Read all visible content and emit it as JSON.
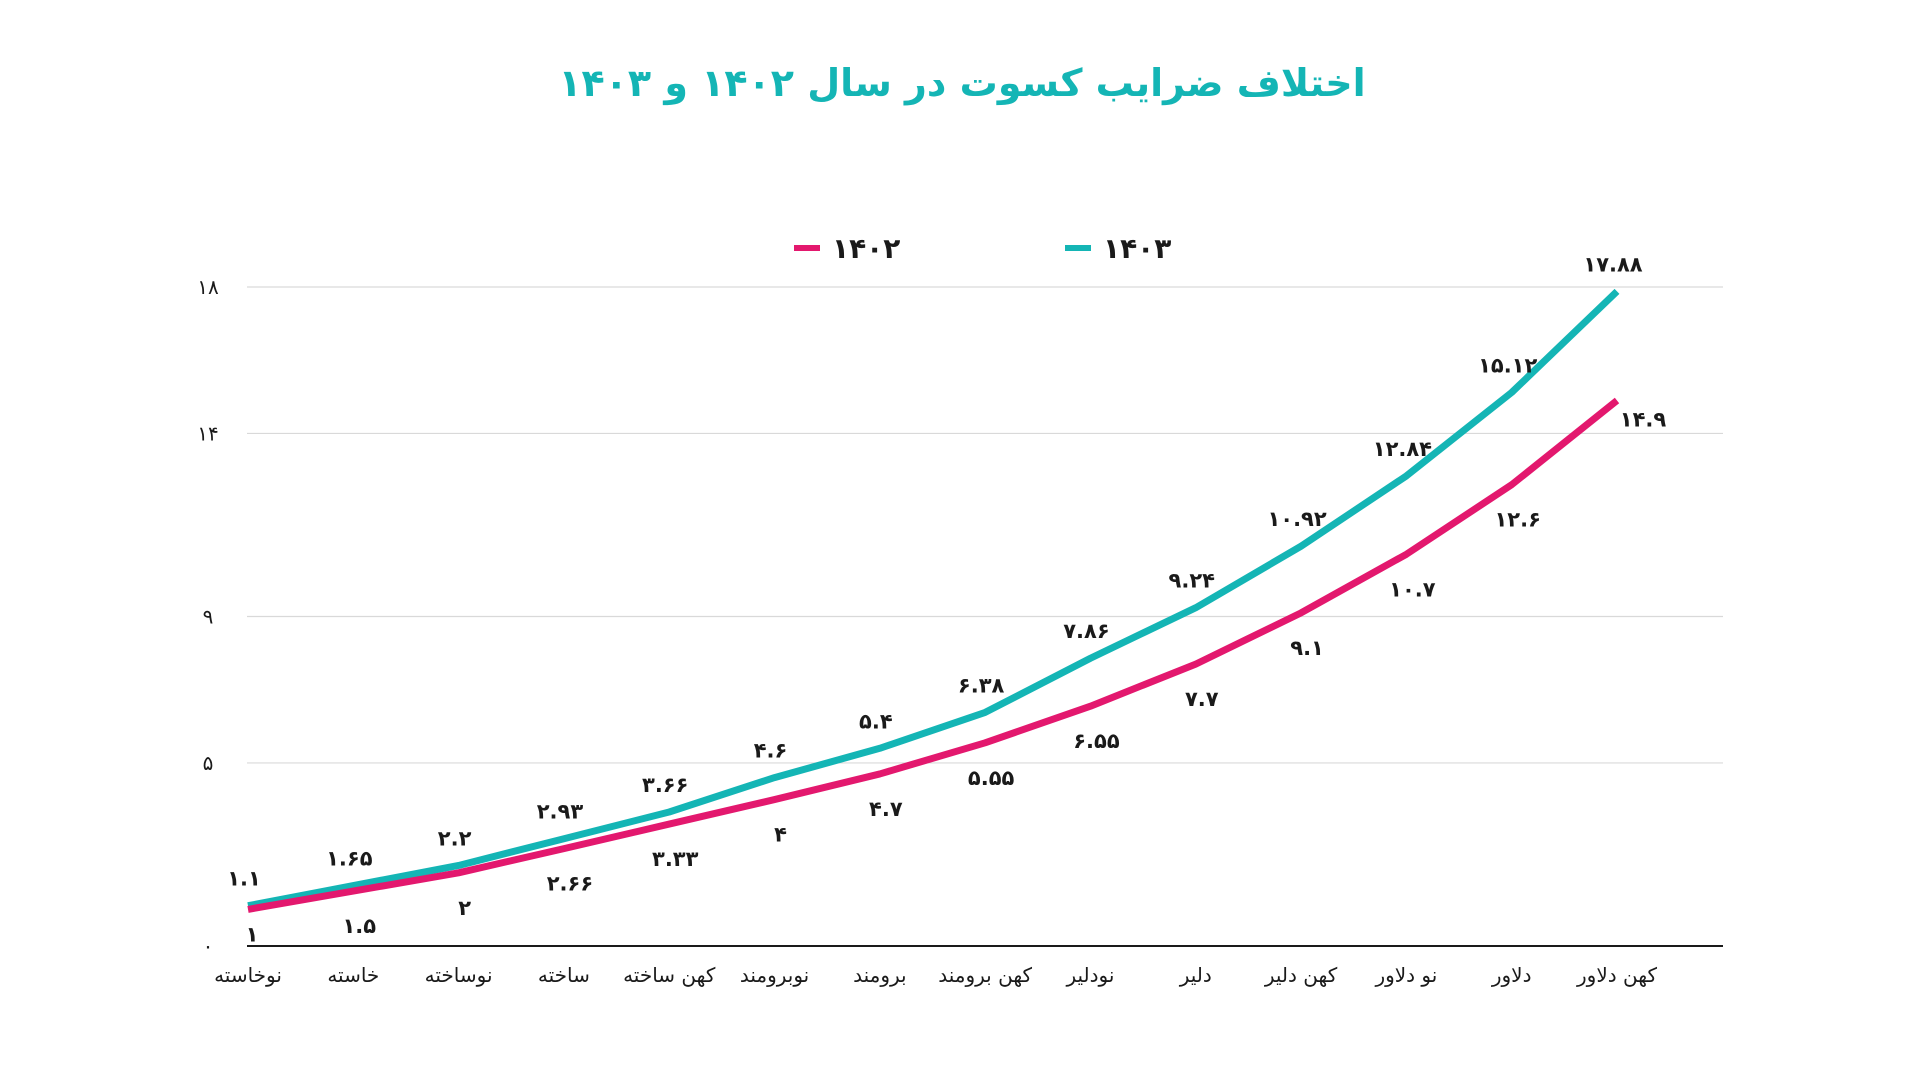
{
  "chart_data": {
    "type": "line",
    "title": "اختلاف ضرایب کسوت در سال ۱۴۰۲ و ۱۴۰۳",
    "xlabel": "",
    "ylabel": "",
    "categories": [
      "نوخاسته",
      "خاسته",
      "نوساخته",
      "ساخته",
      "کهن ساخته",
      "نوبرومند",
      "برومند",
      "کهن برومند",
      "نودلیر",
      "دلیر",
      "کهن دلیر",
      "نو دلاور",
      "دلاور",
      "کهن دلاور"
    ],
    "y_ticks": [
      0,
      5,
      9,
      14,
      18
    ],
    "y_tick_labels": [
      "۰",
      "۵",
      "۹",
      "۱۴",
      "۱۸"
    ],
    "ylim": [
      0,
      18
    ],
    "grid": true,
    "legend_position": "top-center",
    "series": [
      {
        "name": "۱۴۰۲",
        "color": "#e3186e",
        "values": [
          1,
          1.5,
          2,
          2.66,
          3.33,
          4,
          4.7,
          5.55,
          6.55,
          7.7,
          9.1,
          10.7,
          12.6,
          14.9
        ],
        "labels": [
          "۱",
          "۱.۵",
          "۲",
          "۲.۶۶",
          "۳.۳۳",
          "۴",
          "۴.۷",
          "۵.۵۵",
          "۶.۵۵",
          "۷.۷",
          "۹.۱",
          "۱۰.۷",
          "۱۲.۶",
          "۱۴.۹"
        ]
      },
      {
        "name": "۱۴۰۳",
        "color": "#14b5b5",
        "values": [
          1.1,
          1.65,
          2.2,
          2.93,
          3.66,
          4.6,
          5.4,
          6.38,
          7.86,
          9.24,
          10.92,
          12.84,
          15.12,
          17.88
        ],
        "labels": [
          "۱.۱",
          "۱.۶۵",
          "۲.۲",
          "۲.۹۳",
          "۳.۶۶",
          "۴.۶",
          "۵.۴",
          "۶.۳۸",
          "۷.۸۶",
          "۹.۲۴",
          "۱۰.۹۲",
          "۱۲.۸۴",
          "۱۵.۱۲",
          "۱۷.۸۸"
        ]
      }
    ],
    "title_color": "#14b5b5"
  }
}
